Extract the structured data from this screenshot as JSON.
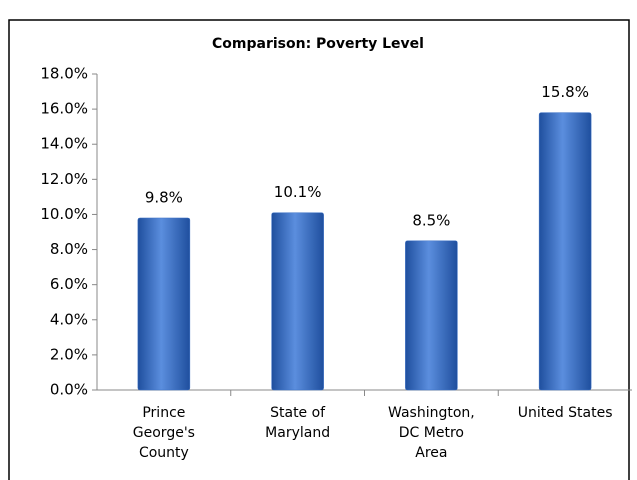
{
  "chart_data": {
    "type": "bar",
    "title": "Comparison:  Poverty Level",
    "categories": [
      "Prince George's County",
      "State of Maryland",
      "Washington, DC Metro Area",
      "United States"
    ],
    "values": [
      9.8,
      10.1,
      8.5,
      15.8
    ],
    "value_labels": [
      "9.8%",
      "10.1%",
      "8.5%",
      "15.8%"
    ],
    "color": "#3d72c6",
    "ylim": [
      0,
      18
    ],
    "yticks": [
      {
        "value": 0,
        "label": "0.0%"
      },
      {
        "value": 2,
        "label": "2.0%"
      },
      {
        "value": 4,
        "label": "4.0%"
      },
      {
        "value": 6,
        "label": "6.0%"
      },
      {
        "value": 8,
        "label": "8.0%"
      },
      {
        "value": 10,
        "label": "10.0%"
      },
      {
        "value": 12,
        "label": "12.0%"
      },
      {
        "value": 14,
        "label": "14.0%"
      },
      {
        "value": 16,
        "label": "16.0%"
      },
      {
        "value": 18,
        "label": "18.0%"
      }
    ],
    "grid": false
  }
}
